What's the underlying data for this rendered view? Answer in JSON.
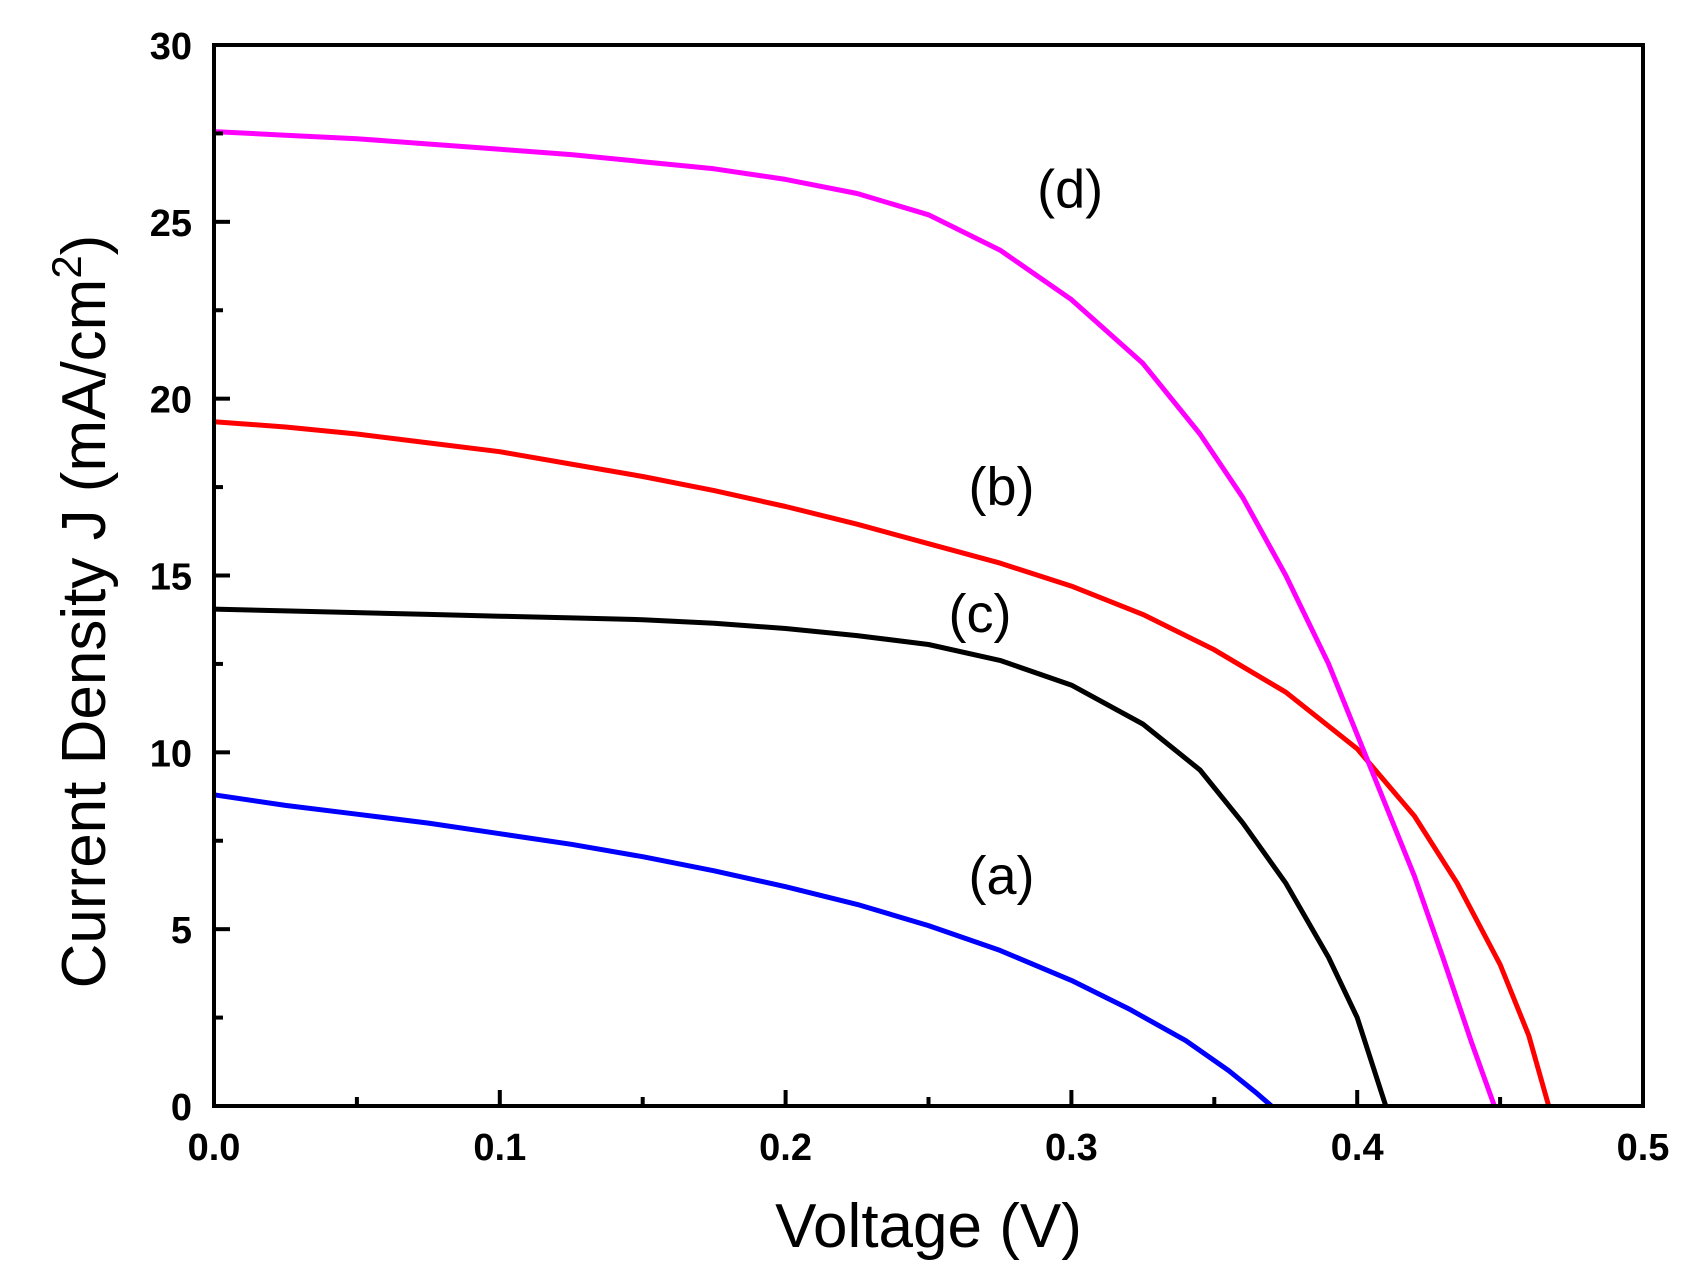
{
  "chart_data": {
    "type": "line",
    "title": "",
    "xlabel": "Voltage (V)",
    "ylabel": "Current Density J (mA/cm",
    "ylabel_superscript": "2",
    "ylabel_close": ")",
    "xlim": [
      0.0,
      0.5
    ],
    "ylim": [
      0,
      30
    ],
    "x_ticks": [
      0.0,
      0.1,
      0.2,
      0.3,
      0.4,
      0.5
    ],
    "x_tick_labels": [
      "0.0",
      "0.1",
      "0.2",
      "0.3",
      "0.4",
      "0.5"
    ],
    "y_ticks": [
      0,
      5,
      10,
      15,
      20,
      25,
      30
    ],
    "y_tick_labels": [
      "0",
      "5",
      "10",
      "15",
      "20",
      "25",
      "30"
    ],
    "grid": false,
    "series": [
      {
        "name": "(a)",
        "color": "#0000ff",
        "label_at": [
          0.264,
          6.0
        ],
        "points": [
          [
            0.0,
            8.8
          ],
          [
            0.025,
            8.5
          ],
          [
            0.05,
            8.25
          ],
          [
            0.075,
            8.0
          ],
          [
            0.1,
            7.7
          ],
          [
            0.125,
            7.4
          ],
          [
            0.15,
            7.05
          ],
          [
            0.175,
            6.65
          ],
          [
            0.2,
            6.2
          ],
          [
            0.225,
            5.7
          ],
          [
            0.25,
            5.1
          ],
          [
            0.275,
            4.4
          ],
          [
            0.3,
            3.55
          ],
          [
            0.32,
            2.75
          ],
          [
            0.34,
            1.85
          ],
          [
            0.355,
            1.0
          ],
          [
            0.365,
            0.35
          ],
          [
            0.37,
            0.0
          ]
        ]
      },
      {
        "name": "(b)",
        "color": "#ff0000",
        "label_at": [
          0.264,
          17.0
        ],
        "points": [
          [
            0.0,
            19.35
          ],
          [
            0.025,
            19.2
          ],
          [
            0.05,
            19.0
          ],
          [
            0.075,
            18.75
          ],
          [
            0.1,
            18.5
          ],
          [
            0.125,
            18.15
          ],
          [
            0.15,
            17.8
          ],
          [
            0.175,
            17.4
          ],
          [
            0.2,
            16.95
          ],
          [
            0.225,
            16.45
          ],
          [
            0.25,
            15.9
          ],
          [
            0.275,
            15.35
          ],
          [
            0.3,
            14.7
          ],
          [
            0.325,
            13.9
          ],
          [
            0.35,
            12.9
          ],
          [
            0.375,
            11.7
          ],
          [
            0.4,
            10.1
          ],
          [
            0.42,
            8.2
          ],
          [
            0.435,
            6.3
          ],
          [
            0.45,
            4.0
          ],
          [
            0.46,
            2.0
          ],
          [
            0.467,
            0.0
          ]
        ]
      },
      {
        "name": "(c)",
        "color": "#000000",
        "label_at": [
          0.257,
          13.4
        ],
        "points": [
          [
            0.0,
            14.05
          ],
          [
            0.025,
            14.0
          ],
          [
            0.05,
            13.95
          ],
          [
            0.075,
            13.9
          ],
          [
            0.1,
            13.85
          ],
          [
            0.125,
            13.8
          ],
          [
            0.15,
            13.75
          ],
          [
            0.175,
            13.65
          ],
          [
            0.2,
            13.5
          ],
          [
            0.225,
            13.3
          ],
          [
            0.25,
            13.05
          ],
          [
            0.275,
            12.6
          ],
          [
            0.3,
            11.9
          ],
          [
            0.325,
            10.8
          ],
          [
            0.345,
            9.5
          ],
          [
            0.36,
            8.0
          ],
          [
            0.375,
            6.3
          ],
          [
            0.39,
            4.2
          ],
          [
            0.4,
            2.5
          ],
          [
            0.41,
            0.0
          ]
        ]
      },
      {
        "name": "(d)",
        "color": "#ff00ff",
        "label_at": [
          0.288,
          25.4
        ],
        "points": [
          [
            0.0,
            27.55
          ],
          [
            0.025,
            27.45
          ],
          [
            0.05,
            27.35
          ],
          [
            0.075,
            27.2
          ],
          [
            0.1,
            27.05
          ],
          [
            0.125,
            26.9
          ],
          [
            0.15,
            26.7
          ],
          [
            0.175,
            26.5
          ],
          [
            0.2,
            26.2
          ],
          [
            0.225,
            25.8
          ],
          [
            0.25,
            25.2
          ],
          [
            0.275,
            24.2
          ],
          [
            0.3,
            22.8
          ],
          [
            0.325,
            21.0
          ],
          [
            0.345,
            19.0
          ],
          [
            0.36,
            17.2
          ],
          [
            0.375,
            15.0
          ],
          [
            0.39,
            12.5
          ],
          [
            0.405,
            9.5
          ],
          [
            0.42,
            6.5
          ],
          [
            0.43,
            4.2
          ],
          [
            0.44,
            1.8
          ],
          [
            0.448,
            0.0
          ]
        ]
      }
    ]
  }
}
